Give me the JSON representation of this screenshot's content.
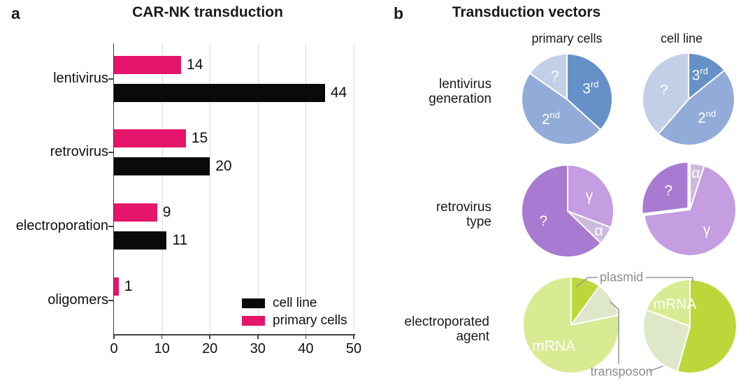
{
  "panel_a": {
    "label": "a",
    "legend": [
      {
        "label": "cell line",
        "color": "#0a0a0a"
      },
      {
        "label": "primary cells",
        "color": "#e4156b"
      }
    ]
  },
  "panel_b": {
    "label": "b",
    "title": "Transduction vectors",
    "column_headers": [
      "primary cells",
      "cell line"
    ],
    "row_labels": [
      [
        "lentivirus",
        "generation"
      ],
      [
        "retrovirus",
        "type"
      ],
      [
        "electroporated",
        "agent"
      ]
    ],
    "callouts": {
      "plasmid": "plasmid",
      "transposon": "transposon"
    }
  },
  "chart_data": [
    {
      "type": "bar",
      "title": "CAR-NK transduction",
      "orientation": "horizontal",
      "categories": [
        "lentivirus",
        "retrovirus",
        "electroporation",
        "oligomers"
      ],
      "series": [
        {
          "name": "cell line",
          "color": "#0a0a0a",
          "values": [
            44,
            20,
            11,
            null
          ]
        },
        {
          "name": "primary cells",
          "color": "#e4156b",
          "values": [
            14,
            15,
            9,
            1
          ]
        }
      ],
      "xlabel": "",
      "ylabel": "",
      "xlim": [
        0,
        50
      ],
      "x_ticks": [
        0,
        10,
        20,
        30,
        40,
        50
      ],
      "grid": "vertical-light-gray",
      "legend_position": "lower right"
    },
    {
      "type": "pie",
      "row": "lentivirus generation",
      "column": "primary cells",
      "slices": [
        {
          "label": "3",
          "sup": "rd",
          "pct": 36.7,
          "color": "#6691c8"
        },
        {
          "label": "2",
          "sup": "nd",
          "pct": 48.0,
          "color": "#92abd8"
        },
        {
          "label": "?",
          "pct": 15.3,
          "color": "#c3cfe6"
        }
      ]
    },
    {
      "type": "pie",
      "row": "lentivirus generation",
      "column": "cell line",
      "slices": [
        {
          "label": "3",
          "sup": "rd",
          "pct": 14.2,
          "color": "#6691c8"
        },
        {
          "label": "2",
          "sup": "nd",
          "pct": 47.2,
          "color": "#92abd8"
        },
        {
          "label": "?",
          "pct": 38.6,
          "color": "#c3cfe6"
        }
      ]
    },
    {
      "type": "pie",
      "row": "retrovirus type",
      "column": "primary cells",
      "slices": [
        {
          "label": "γ",
          "pct": 30.8,
          "color": "#c59de1"
        },
        {
          "label": "α",
          "pct": 6.4,
          "color": "#cebade"
        },
        {
          "label": "?",
          "pct": 62.8,
          "color": "#a97ad2"
        }
      ]
    },
    {
      "type": "pie",
      "row": "retrovirus type",
      "column": "cell line",
      "slices": [
        {
          "label": "α",
          "pct": 5.0,
          "color": "#cebade"
        },
        {
          "label": "γ",
          "pct": 68.0,
          "color": "#c59de1"
        },
        {
          "label": "?",
          "pct": 27.0,
          "color": "#a97ad2",
          "exploded": true
        }
      ]
    },
    {
      "type": "pie",
      "row": "electroporated agent",
      "column": "primary cells",
      "slices": [
        {
          "label": "",
          "callout": "plasmid",
          "pct": 10.0,
          "color": "#bdd73b"
        },
        {
          "label": "",
          "callout": "transposon",
          "pct": 11.7,
          "color": "#dfe7c9"
        },
        {
          "label": "mRNA",
          "pct": 78.3,
          "color": "#d9eb92"
        }
      ]
    },
    {
      "type": "pie",
      "row": "electroporated agent",
      "column": "cell line",
      "slices": [
        {
          "label": "",
          "callout": "plasmid",
          "pct": 54.4,
          "color": "#bdd73b"
        },
        {
          "label": "",
          "callout": "transposon",
          "pct": 26.4,
          "color": "#dfe7c9"
        },
        {
          "label": "mRNA",
          "pct": 19.2,
          "color": "#d9eb92"
        }
      ]
    }
  ]
}
